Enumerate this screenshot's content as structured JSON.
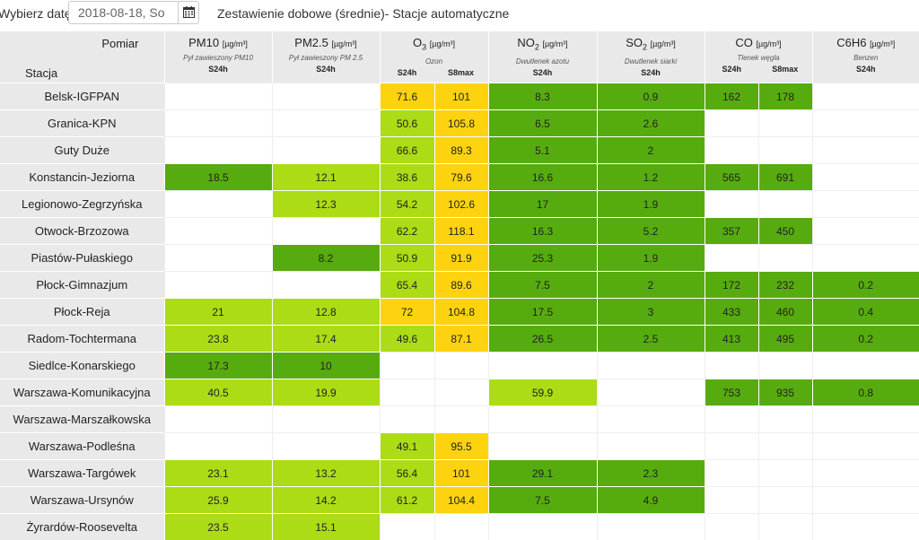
{
  "topbar": {
    "date_label": "Wybierz datę:",
    "date_value": "2018-08-18, So",
    "title": "Zestawienie dobowe (średnie)- Stacje automatyczne"
  },
  "header": {
    "pomiar": "Pomiar",
    "stacja": "Stacja",
    "unit": "[µg/m³]",
    "pollutants": [
      {
        "name": "PM10",
        "sub": "",
        "desc": "Pył zawieszony PM10",
        "cols": [
          "S24h"
        ]
      },
      {
        "name": "PM2.5",
        "sub": "",
        "desc": "Pył zawieszony PM 2.5",
        "cols": [
          "S24h"
        ]
      },
      {
        "name": "O",
        "sub": "3",
        "desc": "Ozon",
        "cols": [
          "S24h",
          "S8max"
        ]
      },
      {
        "name": "NO",
        "sub": "2",
        "desc": "Dwutlenek azotu",
        "cols": [
          "S24h"
        ]
      },
      {
        "name": "SO",
        "sub": "2",
        "desc": "Dwutlenek siarki",
        "cols": [
          "S24h"
        ]
      },
      {
        "name": "CO",
        "sub": "",
        "desc": "Tlenek węgla",
        "cols": [
          "S24h",
          "S8max"
        ]
      },
      {
        "name": "C6H6",
        "sub": "",
        "desc": "Benzen",
        "cols": [
          "S24h"
        ]
      }
    ]
  },
  "colors": {
    "very_good": "#56ac0f",
    "good": "#acdc15",
    "moderate": "#fdd310"
  },
  "rows": [
    {
      "station": "Belsk-IGFPAN",
      "cells": [
        [
          "",
          ""
        ],
        [
          "",
          ""
        ],
        [
          "71.6",
          "y"
        ],
        [
          "101",
          "y"
        ],
        [
          "8.3",
          "vg"
        ],
        [
          "0.9",
          "vg"
        ],
        [
          "162",
          "vg"
        ],
        [
          "178",
          "vg"
        ],
        [
          "",
          ""
        ]
      ]
    },
    {
      "station": "Granica-KPN",
      "cells": [
        [
          "",
          ""
        ],
        [
          "",
          ""
        ],
        [
          "50.6",
          "g"
        ],
        [
          "105.8",
          "y"
        ],
        [
          "6.5",
          "vg"
        ],
        [
          "2.6",
          "vg"
        ],
        [
          "",
          ""
        ],
        [
          "",
          ""
        ],
        [
          "",
          ""
        ]
      ]
    },
    {
      "station": "Guty Duże",
      "cells": [
        [
          "",
          ""
        ],
        [
          "",
          ""
        ],
        [
          "66.6",
          "g"
        ],
        [
          "89.3",
          "y"
        ],
        [
          "5.1",
          "vg"
        ],
        [
          "2",
          "vg"
        ],
        [
          "",
          ""
        ],
        [
          "",
          ""
        ],
        [
          "",
          ""
        ]
      ]
    },
    {
      "station": "Konstancin-Jeziorna",
      "cells": [
        [
          "18.5",
          "vg"
        ],
        [
          "12.1",
          "g"
        ],
        [
          "38.6",
          "g"
        ],
        [
          "79.6",
          "y"
        ],
        [
          "16.6",
          "vg"
        ],
        [
          "1.2",
          "vg"
        ],
        [
          "565",
          "vg"
        ],
        [
          "691",
          "vg"
        ],
        [
          "",
          ""
        ]
      ]
    },
    {
      "station": "Legionowo-Zegrzyńska",
      "cells": [
        [
          "",
          ""
        ],
        [
          "12.3",
          "g"
        ],
        [
          "54.2",
          "g"
        ],
        [
          "102.6",
          "y"
        ],
        [
          "17",
          "vg"
        ],
        [
          "1.9",
          "vg"
        ],
        [
          "",
          ""
        ],
        [
          "",
          ""
        ],
        [
          "",
          ""
        ]
      ]
    },
    {
      "station": "Otwock-Brzozowa",
      "cells": [
        [
          "",
          ""
        ],
        [
          "",
          ""
        ],
        [
          "62.2",
          "g"
        ],
        [
          "118.1",
          "y"
        ],
        [
          "16.3",
          "vg"
        ],
        [
          "5.2",
          "vg"
        ],
        [
          "357",
          "vg"
        ],
        [
          "450",
          "vg"
        ],
        [
          "",
          ""
        ]
      ]
    },
    {
      "station": "Piastów-Pułaskiego",
      "cells": [
        [
          "",
          ""
        ],
        [
          "8.2",
          "vg"
        ],
        [
          "50.9",
          "g"
        ],
        [
          "91.9",
          "y"
        ],
        [
          "25.3",
          "vg"
        ],
        [
          "1.9",
          "vg"
        ],
        [
          "",
          ""
        ],
        [
          "",
          ""
        ],
        [
          "",
          ""
        ]
      ]
    },
    {
      "station": "Płock-Gimnazjum",
      "cells": [
        [
          "",
          ""
        ],
        [
          "",
          ""
        ],
        [
          "65.4",
          "g"
        ],
        [
          "89.6",
          "y"
        ],
        [
          "7.5",
          "vg"
        ],
        [
          "2",
          "vg"
        ],
        [
          "172",
          "vg"
        ],
        [
          "232",
          "vg"
        ],
        [
          "0.2",
          "vg"
        ]
      ]
    },
    {
      "station": "Płock-Reja",
      "cells": [
        [
          "21",
          "g"
        ],
        [
          "12.8",
          "g"
        ],
        [
          "72",
          "y"
        ],
        [
          "104.8",
          "y"
        ],
        [
          "17.5",
          "vg"
        ],
        [
          "3",
          "vg"
        ],
        [
          "433",
          "vg"
        ],
        [
          "460",
          "vg"
        ],
        [
          "0.4",
          "vg"
        ]
      ]
    },
    {
      "station": "Radom-Tochtermana",
      "cells": [
        [
          "23.8",
          "g"
        ],
        [
          "17.4",
          "g"
        ],
        [
          "49.6",
          "g"
        ],
        [
          "87.1",
          "y"
        ],
        [
          "26.5",
          "vg"
        ],
        [
          "2.5",
          "vg"
        ],
        [
          "413",
          "vg"
        ],
        [
          "495",
          "vg"
        ],
        [
          "0.2",
          "vg"
        ]
      ]
    },
    {
      "station": "Siedlce-Konarskiego",
      "cells": [
        [
          "17.3",
          "vg"
        ],
        [
          "10",
          "vg"
        ],
        [
          "",
          ""
        ],
        [
          "",
          ""
        ],
        [
          "",
          ""
        ],
        [
          "",
          ""
        ],
        [
          "",
          ""
        ],
        [
          "",
          ""
        ],
        [
          "",
          ""
        ]
      ]
    },
    {
      "station": "Warszawa-Komunikacyjna",
      "cells": [
        [
          "40.5",
          "g"
        ],
        [
          "19.9",
          "g"
        ],
        [
          "",
          ""
        ],
        [
          "",
          ""
        ],
        [
          "59.9",
          "g"
        ],
        [
          "",
          ""
        ],
        [
          "753",
          "vg"
        ],
        [
          "935",
          "vg"
        ],
        [
          "0.8",
          "vg"
        ]
      ]
    },
    {
      "station": "Warszawa-Marszałkowska",
      "cells": [
        [
          "",
          ""
        ],
        [
          "",
          ""
        ],
        [
          "",
          ""
        ],
        [
          "",
          ""
        ],
        [
          "",
          ""
        ],
        [
          "",
          ""
        ],
        [
          "",
          ""
        ],
        [
          "",
          ""
        ],
        [
          "",
          ""
        ]
      ]
    },
    {
      "station": "Warszawa-Podleśna",
      "cells": [
        [
          "",
          ""
        ],
        [
          "",
          ""
        ],
        [
          "49.1",
          "g"
        ],
        [
          "95.5",
          "y"
        ],
        [
          "",
          ""
        ],
        [
          "",
          ""
        ],
        [
          "",
          ""
        ],
        [
          "",
          ""
        ],
        [
          "",
          ""
        ]
      ]
    },
    {
      "station": "Warszawa-Targówek",
      "cells": [
        [
          "23.1",
          "g"
        ],
        [
          "13.2",
          "g"
        ],
        [
          "56.4",
          "g"
        ],
        [
          "101",
          "y"
        ],
        [
          "29.1",
          "vg"
        ],
        [
          "2.3",
          "vg"
        ],
        [
          "",
          ""
        ],
        [
          "",
          ""
        ],
        [
          "",
          ""
        ]
      ]
    },
    {
      "station": "Warszawa-Ursynów",
      "cells": [
        [
          "25.9",
          "g"
        ],
        [
          "14.2",
          "g"
        ],
        [
          "61.2",
          "g"
        ],
        [
          "104.4",
          "y"
        ],
        [
          "7.5",
          "vg"
        ],
        [
          "4.9",
          "vg"
        ],
        [
          "",
          ""
        ],
        [
          "",
          ""
        ],
        [
          "",
          ""
        ]
      ]
    },
    {
      "station": "Żyrardów-Roosevelta",
      "cells": [
        [
          "23.5",
          "g"
        ],
        [
          "15.1",
          "g"
        ],
        [
          "",
          ""
        ],
        [
          "",
          ""
        ],
        [
          "",
          ""
        ],
        [
          "",
          ""
        ],
        [
          "",
          ""
        ],
        [
          "",
          ""
        ],
        [
          "",
          ""
        ]
      ]
    }
  ]
}
